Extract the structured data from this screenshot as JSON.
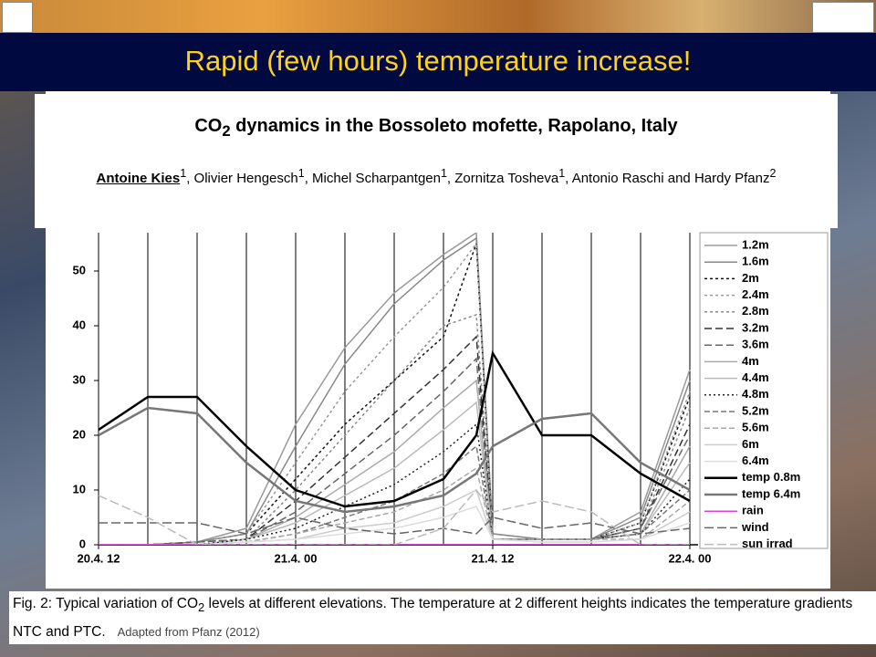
{
  "title": "Rapid (few hours) temperature increase!",
  "paper": {
    "title_parts": [
      "CO",
      "2",
      " dynamics in the Bossoleto mofette, Rapolano, Italy"
    ],
    "authors": [
      {
        "name": "Antoine Kies",
        "sup": "1"
      },
      {
        "name": "Olivier Hengesch",
        "sup": "1"
      },
      {
        "name": "Michel Scharpantgen",
        "sup": "1"
      },
      {
        "name": "Zornitza Tosheva",
        "sup": "1"
      },
      {
        "name": "Antonio Raschi and Hardy Pfanz",
        "sup": "2"
      }
    ]
  },
  "caption": {
    "parts": [
      "Fig. 2: Typical variation of CO",
      "2",
      " levels at different elevations. The temperature at 2 different heights indicates the temperature gradients NTC and PTC."
    ],
    "source": "Adapted from Pfanz (2012)"
  },
  "chart_data": {
    "type": "line",
    "x": [
      0,
      3,
      6,
      9,
      12,
      15,
      18,
      21,
      23,
      24,
      27,
      30,
      33,
      36
    ],
    "xlim": [
      0,
      36.5
    ],
    "ylim": [
      0,
      57
    ],
    "yticks": [
      0,
      10,
      20,
      30,
      40,
      50
    ],
    "xticks": [
      {
        "value": 0,
        "label": "20.4. 12"
      },
      {
        "value": 12,
        "label": "21.4. 00"
      },
      {
        "value": 24,
        "label": "21.4. 12"
      },
      {
        "value": 36,
        "label": "22.4. 00"
      }
    ],
    "xgrid": [
      0,
      3,
      6,
      9,
      12,
      15,
      18,
      21,
      24,
      27,
      30,
      33,
      36
    ],
    "grid": true,
    "series": [
      {
        "name": "1.2m",
        "color": "#999999",
        "dash": "",
        "width": 1.5,
        "values": [
          0,
          0,
          0.5,
          3,
          22,
          36,
          46,
          53,
          57,
          2,
          1,
          1,
          6,
          32
        ]
      },
      {
        "name": "1.6m",
        "color": "#888888",
        "dash": "",
        "width": 1.5,
        "values": [
          0,
          0,
          0.5,
          2,
          18,
          33,
          44,
          52,
          56,
          2,
          1,
          1,
          5,
          30
        ]
      },
      {
        "name": "2m",
        "color": "#111111",
        "dash": "3 3",
        "width": 1.5,
        "values": [
          0,
          0,
          0.5,
          2,
          12,
          22,
          30,
          38,
          55,
          1,
          1,
          1,
          4,
          27
        ]
      },
      {
        "name": "2.4m",
        "color": "#999999",
        "dash": "3 3",
        "width": 1.5,
        "values": [
          0,
          0,
          0.5,
          2,
          15,
          28,
          38,
          47,
          55,
          1,
          1,
          1,
          4,
          28
        ]
      },
      {
        "name": "2.8m",
        "color": "#888888",
        "dash": "3 3",
        "width": 1.5,
        "values": [
          0,
          0,
          0.5,
          1,
          10,
          20,
          30,
          40,
          42,
          1,
          1,
          1,
          3,
          25
        ]
      },
      {
        "name": "3.2m",
        "color": "#333333",
        "dash": "8 4",
        "width": 1.5,
        "values": [
          0,
          0,
          0.5,
          1,
          8,
          16,
          24,
          32,
          38,
          1,
          1,
          1,
          3,
          22
        ]
      },
      {
        "name": "3.6m",
        "color": "#666666",
        "dash": "8 4",
        "width": 1.5,
        "values": [
          0,
          0,
          0.5,
          1,
          6,
          13,
          20,
          28,
          34,
          1,
          1,
          1,
          3,
          20
        ]
      },
      {
        "name": "4m",
        "color": "#aaaaaa",
        "dash": "",
        "width": 1.5,
        "values": [
          0,
          0,
          0,
          1,
          5,
          11,
          17,
          25,
          30,
          1,
          1,
          1,
          2,
          18
        ]
      },
      {
        "name": "4.4m",
        "color": "#bbbbbb",
        "dash": "",
        "width": 1.5,
        "values": [
          0,
          0,
          0,
          1,
          4,
          9,
          14,
          21,
          26,
          1,
          1,
          1,
          2,
          15
        ]
      },
      {
        "name": "4.8m",
        "color": "#222222",
        "dash": "2 3",
        "width": 1.5,
        "values": [
          0,
          0,
          0,
          1,
          3,
          7,
          11,
          17,
          22,
          1,
          1,
          1,
          2,
          12
        ]
      },
      {
        "name": "5.2m",
        "color": "#777777",
        "dash": "6 3",
        "width": 1.5,
        "values": [
          0,
          0,
          0,
          0.5,
          2,
          5,
          8,
          13,
          18,
          1,
          1,
          1,
          2,
          10
        ]
      },
      {
        "name": "5.6m",
        "color": "#aaaaaa",
        "dash": "6 3",
        "width": 1.5,
        "values": [
          0,
          0,
          0,
          0.5,
          2,
          4,
          6,
          10,
          14,
          1,
          1,
          1,
          1,
          8
        ]
      },
      {
        "name": "6m",
        "color": "#cccccc",
        "dash": "",
        "width": 1.5,
        "values": [
          0,
          0,
          0,
          0.5,
          1,
          3,
          4,
          7,
          10,
          1,
          0.5,
          0.5,
          1,
          6
        ]
      },
      {
        "name": "6.4m",
        "color": "#dddddd",
        "dash": "",
        "width": 1.5,
        "values": [
          0,
          0,
          0,
          0.5,
          1,
          2,
          3,
          5,
          7,
          1,
          0.5,
          0.5,
          1,
          4
        ]
      },
      {
        "name": "temp 0.8m",
        "color": "#000000",
        "dash": "",
        "width": 2.5,
        "values": [
          21,
          27,
          27,
          18,
          10,
          7,
          8,
          12,
          20,
          35,
          20,
          20,
          13,
          8
        ]
      },
      {
        "name": "temp 6.4m",
        "color": "#777777",
        "dash": "",
        "width": 2.5,
        "values": [
          20,
          25,
          24,
          15,
          8,
          6,
          7,
          9,
          13,
          18,
          23,
          24,
          15,
          10
        ]
      },
      {
        "name": "rain",
        "color": "#e040e0",
        "dash": "",
        "width": 1.5,
        "values": [
          0,
          0,
          0,
          0,
          0,
          0,
          0,
          0,
          0,
          0,
          0,
          0,
          0,
          0
        ]
      },
      {
        "name": "wind",
        "color": "#666666",
        "dash": "10 4",
        "width": 1.5,
        "values": [
          4,
          4,
          4,
          2,
          5,
          3,
          2,
          3,
          2,
          5,
          3,
          4,
          2,
          3
        ]
      },
      {
        "name": "sun irrad",
        "color": "#bbbbbb",
        "dash": "10 4",
        "width": 1.5,
        "values": [
          9,
          5,
          0,
          0,
          0,
          0,
          0,
          3,
          10,
          6,
          8,
          6,
          0,
          0
        ]
      }
    ]
  }
}
